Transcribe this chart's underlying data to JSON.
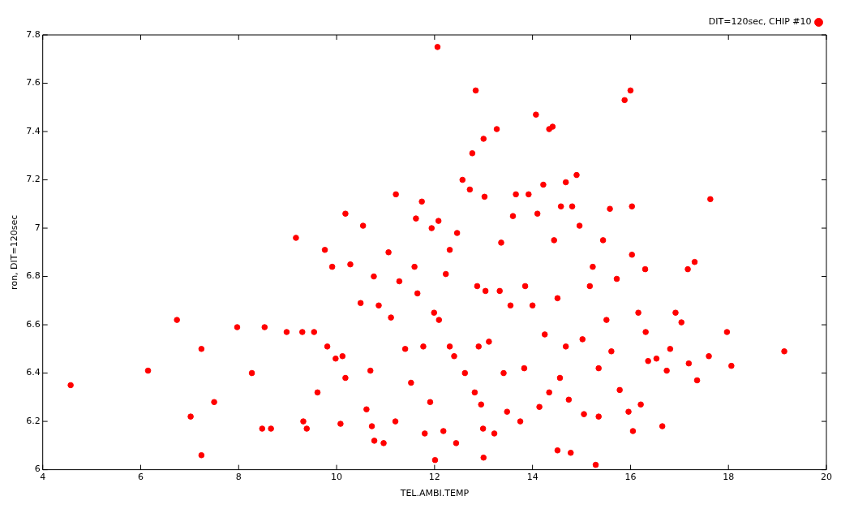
{
  "chart_data": {
    "type": "scatter",
    "xlabel": "TEL.AMBI.TEMP",
    "ylabel": "ron, DIT=120sec",
    "legend": "top right",
    "marker": "circle",
    "grid": false,
    "xlim": [
      4,
      20
    ],
    "xticks": [
      4,
      6,
      8,
      10,
      12,
      14,
      16,
      18,
      20
    ],
    "ylim": [
      6,
      7.8
    ],
    "yticks": [
      6,
      6.2,
      6.4,
      6.6,
      6.8,
      7,
      7.2,
      7.4,
      7.6,
      7.8
    ],
    "series": [
      {
        "name": "DIT=120sec, CHIP #10",
        "color": "#ff0000",
        "x": [
          4.57,
          6.15,
          6.74,
          7.02,
          7.24,
          7.24,
          7.5,
          7.97,
          8.27,
          8.48,
          8.53,
          8.66,
          8.98,
          9.17,
          9.3,
          9.32,
          9.39,
          9.54,
          9.61,
          9.76,
          9.81,
          9.91,
          9.98,
          10.08,
          10.12,
          10.18,
          10.18,
          10.28,
          10.54,
          10.49,
          10.61,
          10.69,
          10.72,
          10.77,
          10.76,
          10.86,
          10.96,
          11.06,
          11.11,
          11.2,
          11.21,
          11.28,
          11.4,
          11.52,
          11.59,
          11.62,
          11.65,
          11.74,
          11.77,
          11.8,
          11.91,
          11.94,
          11.99,
          12.01,
          12.06,
          12.08,
          12.09,
          12.18,
          12.23,
          12.31,
          12.4,
          12.44,
          12.46,
          12.57,
          12.62,
          12.72,
          12.77,
          12.84,
          12.87,
          12.9,
          12.95,
          12.99,
          13.0,
          13.0,
          13.02,
          13.04,
          13.11,
          13.22,
          13.27,
          13.36,
          13.41,
          13.48,
          13.55,
          13.6,
          13.66,
          13.75,
          13.85,
          13.92,
          14.0,
          14.07,
          14.1,
          14.14,
          14.22,
          14.25,
          14.34,
          14.41,
          14.44,
          14.51,
          14.51,
          14.56,
          14.58,
          14.68,
          14.74,
          14.78,
          14.81,
          14.9,
          14.96,
          15.02,
          15.05,
          15.17,
          15.23,
          15.29,
          15.35,
          15.44,
          15.51,
          15.58,
          15.61,
          15.72,
          15.78,
          15.88,
          15.96,
          16.0,
          16.03,
          16.03,
          16.05,
          16.16,
          16.21,
          16.3,
          16.31,
          16.36,
          16.53,
          16.65,
          16.74,
          16.81,
          16.92,
          17.04,
          17.17,
          17.19,
          17.31,
          17.36,
          17.6,
          17.63,
          17.97,
          18.06,
          19.14,
          13.33,
          13.83,
          14.68,
          12.31,
          12.82,
          14.34,
          15.35
        ],
        "values": [
          6.35,
          6.41,
          6.62,
          6.22,
          6.5,
          6.06,
          6.28,
          6.59,
          6.4,
          6.17,
          6.59,
          6.17,
          6.57,
          6.96,
          6.57,
          6.2,
          6.17,
          6.57,
          6.32,
          6.91,
          6.51,
          6.84,
          6.46,
          6.19,
          6.47,
          7.06,
          6.38,
          6.85,
          7.01,
          6.69,
          6.25,
          6.41,
          6.18,
          6.12,
          6.8,
          6.68,
          6.11,
          6.9,
          6.63,
          6.2,
          7.14,
          6.78,
          6.5,
          6.36,
          6.84,
          7.04,
          6.73,
          7.11,
          6.51,
          6.15,
          6.28,
          7.0,
          6.65,
          6.04,
          7.75,
          7.03,
          6.62,
          6.16,
          6.81,
          6.91,
          6.47,
          6.11,
          6.98,
          7.2,
          6.4,
          7.16,
          7.31,
          7.57,
          6.76,
          6.51,
          6.27,
          6.17,
          7.37,
          6.05,
          7.13,
          6.74,
          6.53,
          6.15,
          7.41,
          6.94,
          6.4,
          6.24,
          6.68,
          7.05,
          7.14,
          6.2,
          6.76,
          7.14,
          6.68,
          7.47,
          7.06,
          6.26,
          7.18,
          6.56,
          7.41,
          7.42,
          6.95,
          6.71,
          6.08,
          6.38,
          7.09,
          7.19,
          6.29,
          6.07,
          7.09,
          7.22,
          7.01,
          6.54,
          6.23,
          6.76,
          6.84,
          6.02,
          6.22,
          6.95,
          6.62,
          7.08,
          6.49,
          6.79,
          6.33,
          7.53,
          6.24,
          7.57,
          7.09,
          6.89,
          6.16,
          6.65,
          6.27,
          6.83,
          6.57,
          6.45,
          6.46,
          6.18,
          6.41,
          6.5,
          6.65,
          6.61,
          6.83,
          6.44,
          6.86,
          6.37,
          6.47,
          7.12,
          6.57,
          6.43,
          6.49,
          6.74,
          6.42,
          6.51,
          6.51,
          6.32,
          6.32,
          6.42
        ]
      }
    ]
  }
}
